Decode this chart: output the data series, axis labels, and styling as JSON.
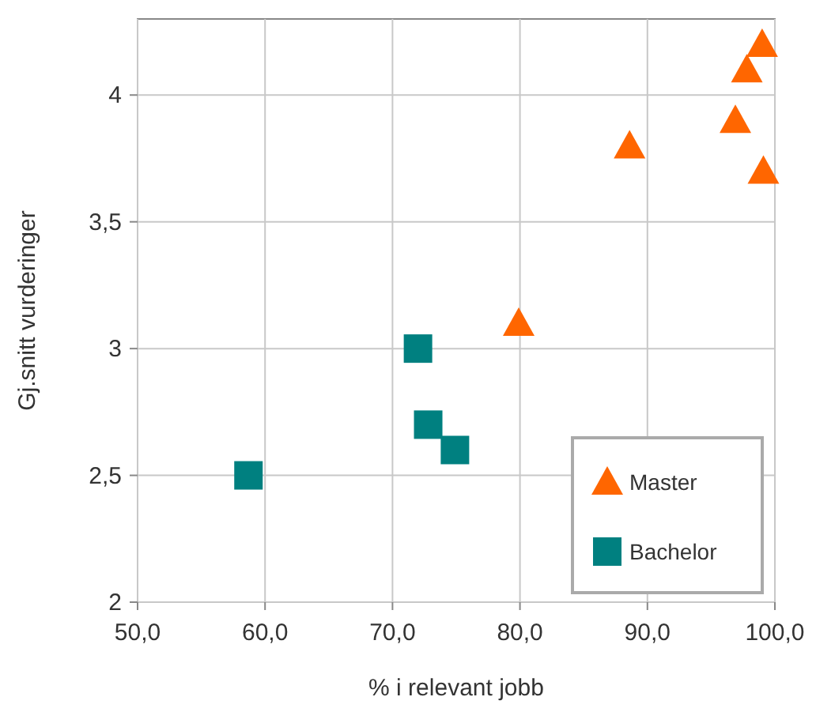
{
  "chart_data": {
    "type": "scatter",
    "xlabel": "% i relevant jobb",
    "ylabel": "Gj.snitt vurderinger",
    "series": [
      {
        "name": "Master",
        "color": "#ff6600",
        "marker": "triangle",
        "x": [
          79.9,
          88.6,
          96.9,
          97.8,
          99.0,
          99.1
        ],
        "values": [
          3.1,
          3.8,
          3.9,
          4.1,
          4.2,
          3.7
        ]
      },
      {
        "name": "Bachelor",
        "color": "#008080",
        "marker": "square",
        "x": [
          58.7,
          72.0,
          72.8,
          74.9
        ],
        "values": [
          2.5,
          3.0,
          2.7,
          2.6
        ]
      }
    ],
    "xlim": [
      50,
      100
    ],
    "xticks": [
      {
        "value": 50,
        "label": "50,0"
      },
      {
        "value": 60,
        "label": "60,0"
      },
      {
        "value": 70,
        "label": "70,0"
      },
      {
        "value": 80,
        "label": "80,0"
      },
      {
        "value": 90,
        "label": "90,0"
      },
      {
        "value": 100,
        "label": "100,0"
      }
    ],
    "ylim": [
      2,
      4.3
    ],
    "yticks": [
      2,
      {
        "value": 2.5,
        "label": "2,5"
      },
      3,
      {
        "value": 3.5,
        "label": "3,5"
      },
      4
    ],
    "grid": true,
    "legend": "bottom right"
  }
}
